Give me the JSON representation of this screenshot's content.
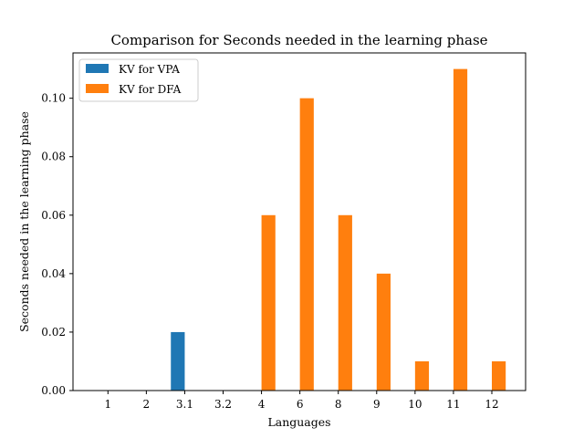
{
  "chart_data": {
    "type": "bar",
    "title": "Comparison for Seconds needed in the learning phase",
    "xlabel": "Languages",
    "ylabel": "Seconds needed in the learning phase",
    "categories": [
      "1",
      "2",
      "3.1",
      "3.2",
      "4",
      "6",
      "8",
      "9",
      "10",
      "11",
      "12"
    ],
    "series": [
      {
        "name": "KV for VPA",
        "color": "#1f77b4",
        "values": [
          0,
          0,
          0.02,
          0,
          0,
          0,
          0,
          0,
          0,
          0,
          0
        ]
      },
      {
        "name": "KV for DFA",
        "color": "#ff7f0e",
        "values": [
          0,
          0,
          0,
          0,
          0.06,
          0.1,
          0.06,
          0.04,
          0.01,
          0.11,
          0.01
        ]
      }
    ],
    "ylim": [
      0,
      0.1155
    ],
    "yticks": [
      "0.00",
      "0.02",
      "0.04",
      "0.06",
      "0.08",
      "0.10"
    ],
    "grid": false,
    "legend_position": "top-left"
  }
}
